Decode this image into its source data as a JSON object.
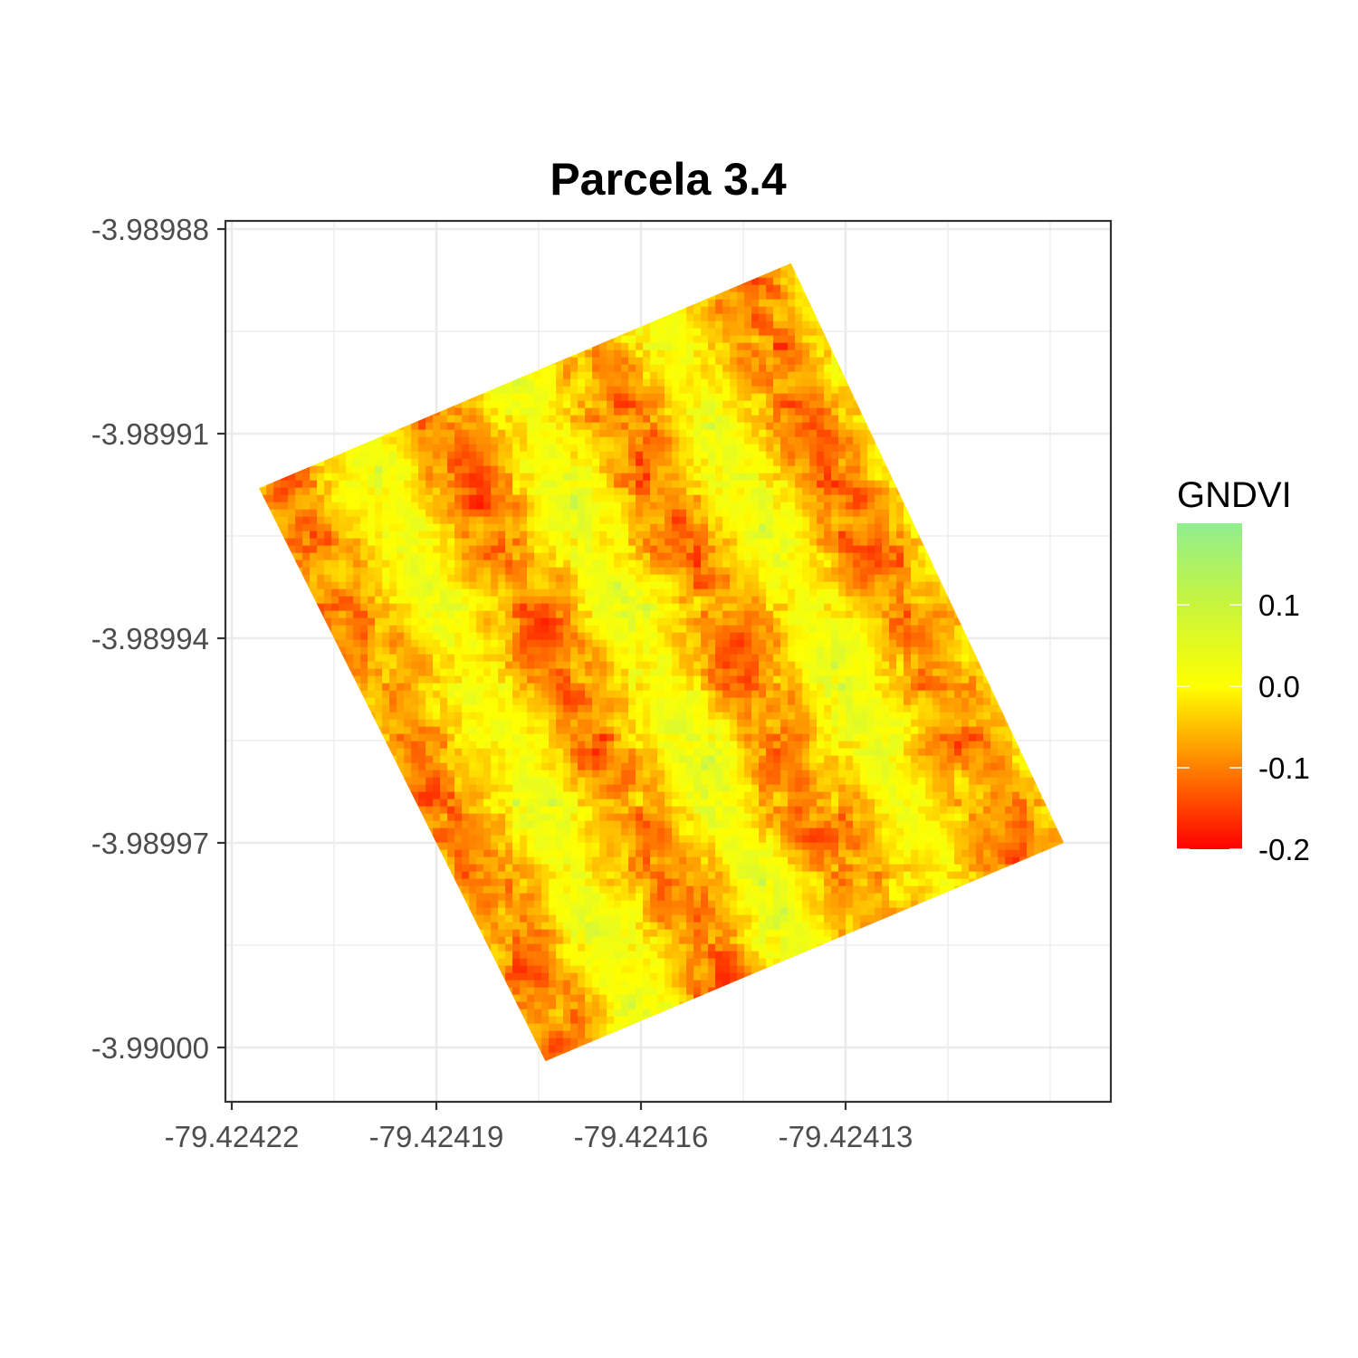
{
  "chart_data": {
    "type": "heatmap",
    "title": "Parcela 3.4",
    "xlabel": "",
    "ylabel": "",
    "x_ticks": [
      -79.42422,
      -79.42419,
      -79.42416,
      -79.42413
    ],
    "x_tick_labels": [
      "-79.42422",
      "-79.42419",
      "-79.42416",
      "-79.42413"
    ],
    "y_ticks": [
      -3.98988,
      -3.98991,
      -3.98994,
      -3.98997,
      -3.99
    ],
    "y_tick_labels": [
      "-3.98988",
      "-3.98991",
      "-3.98994",
      "-3.98997",
      "-3.99000"
    ],
    "xlim": [
      -79.424221,
      -79.424091
    ],
    "ylim": [
      -3.990008,
      -3.989879
    ],
    "grid": true,
    "plot_area": {
      "corners": [
        {
          "x": -79.424216,
          "y": -3.989918
        },
        {
          "x": -79.424138,
          "y": -3.989885
        },
        {
          "x": -79.424098,
          "y": -3.98997
        },
        {
          "x": -79.424174,
          "y": -3.990002
        }
      ],
      "description": "rotated rectangular raster of GNDVI values"
    },
    "legend": {
      "title": "GNDVI",
      "position": "right",
      "type": "colorbar",
      "range": [
        -0.2,
        0.2
      ],
      "ticks": [
        0.1,
        0.0,
        -0.1,
        -0.2
      ],
      "tick_labels": [
        "0.1",
        "0.0",
        "-0.1",
        "-0.2"
      ],
      "colors": {
        "low": "#ff0000",
        "mid": "#ffff00",
        "high": "#90ee90"
      }
    }
  }
}
